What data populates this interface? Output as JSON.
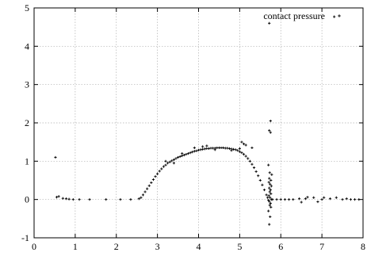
{
  "chart_data": {
    "type": "scatter",
    "title": "",
    "xlabel": "",
    "ylabel": "",
    "xlim": [
      0,
      8
    ],
    "ylim": [
      -1,
      5
    ],
    "x_ticks": [
      "0",
      "1",
      "2",
      "3",
      "4",
      "5",
      "6",
      "7",
      "8"
    ],
    "y_ticks": [
      "-1",
      "0",
      "1",
      "2",
      "3",
      "4",
      "5"
    ],
    "grid": true,
    "legend_position": "top-right",
    "marker": "plus",
    "series": [
      {
        "name": "contact pressure",
        "color": "#000000",
        "points": [
          [
            0.52,
            1.1
          ],
          [
            0.55,
            0.06
          ],
          [
            0.6,
            0.08
          ],
          [
            0.7,
            0.03
          ],
          [
            0.78,
            0.02
          ],
          [
            0.85,
            0.01
          ],
          [
            0.95,
            0.0
          ],
          [
            1.1,
            0.0
          ],
          [
            1.35,
            0.0
          ],
          [
            1.75,
            0.0
          ],
          [
            2.1,
            0.0
          ],
          [
            2.35,
            0.0
          ],
          [
            2.55,
            0.02
          ],
          [
            2.6,
            0.05
          ],
          [
            2.65,
            0.12
          ],
          [
            2.7,
            0.2
          ],
          [
            2.75,
            0.28
          ],
          [
            2.8,
            0.36
          ],
          [
            2.85,
            0.44
          ],
          [
            2.9,
            0.52
          ],
          [
            2.95,
            0.6
          ],
          [
            3.0,
            0.67
          ],
          [
            3.05,
            0.74
          ],
          [
            3.1,
            0.8
          ],
          [
            3.15,
            0.86
          ],
          [
            3.2,
            0.9
          ],
          [
            3.25,
            0.95
          ],
          [
            3.3,
            0.98
          ],
          [
            3.35,
            1.01
          ],
          [
            3.4,
            1.04
          ],
          [
            3.45,
            1.07
          ],
          [
            3.5,
            1.1
          ],
          [
            3.55,
            1.12
          ],
          [
            3.6,
            1.14
          ],
          [
            3.65,
            1.16
          ],
          [
            3.7,
            1.18
          ],
          [
            3.75,
            1.2
          ],
          [
            3.8,
            1.22
          ],
          [
            3.85,
            1.24
          ],
          [
            3.9,
            1.26
          ],
          [
            3.95,
            1.27
          ],
          [
            4.0,
            1.29
          ],
          [
            4.05,
            1.3
          ],
          [
            4.1,
            1.31
          ],
          [
            4.15,
            1.32
          ],
          [
            4.2,
            1.33
          ],
          [
            4.25,
            1.33
          ],
          [
            4.3,
            1.34
          ],
          [
            4.35,
            1.34
          ],
          [
            4.4,
            1.34
          ],
          [
            4.45,
            1.35
          ],
          [
            4.5,
            1.35
          ],
          [
            4.55,
            1.35
          ],
          [
            4.6,
            1.35
          ],
          [
            4.65,
            1.34
          ],
          [
            4.7,
            1.34
          ],
          [
            4.75,
            1.33
          ],
          [
            4.8,
            1.32
          ],
          [
            4.85,
            1.31
          ],
          [
            4.9,
            1.3
          ],
          [
            4.95,
            1.28
          ],
          [
            5.0,
            1.25
          ],
          [
            5.05,
            1.22
          ],
          [
            5.1,
            1.18
          ],
          [
            5.15,
            1.13
          ],
          [
            5.2,
            1.07
          ],
          [
            5.25,
            1.0
          ],
          [
            5.3,
            0.92
          ],
          [
            5.35,
            0.83
          ],
          [
            5.4,
            0.73
          ],
          [
            5.45,
            0.62
          ],
          [
            5.5,
            0.5
          ],
          [
            5.55,
            0.38
          ],
          [
            5.6,
            0.25
          ],
          [
            5.65,
            0.12
          ],
          [
            5.68,
            0.05
          ],
          [
            5.7,
            -0.02
          ],
          [
            4.1,
            1.38
          ],
          [
            4.2,
            1.4
          ],
          [
            5.05,
            1.5
          ],
          [
            5.1,
            1.45
          ],
          [
            5.15,
            1.42
          ],
          [
            5.3,
            1.35
          ],
          [
            3.2,
            1.0
          ],
          [
            3.4,
            0.95
          ],
          [
            3.6,
            1.2
          ],
          [
            3.9,
            1.35
          ],
          [
            4.4,
            1.3
          ],
          [
            4.8,
            1.28
          ],
          [
            5.0,
            1.33
          ],
          [
            5.72,
            4.6
          ],
          [
            5.75,
            2.05
          ],
          [
            5.72,
            1.8
          ],
          [
            5.75,
            1.75
          ],
          [
            5.7,
            0.9
          ],
          [
            5.73,
            0.7
          ],
          [
            5.78,
            0.65
          ],
          [
            5.72,
            0.55
          ],
          [
            5.76,
            0.5
          ],
          [
            5.71,
            0.45
          ],
          [
            5.74,
            0.4
          ],
          [
            5.77,
            0.35
          ],
          [
            5.72,
            0.3
          ],
          [
            5.75,
            0.25
          ],
          [
            5.73,
            0.2
          ],
          [
            5.76,
            0.15
          ],
          [
            5.71,
            0.1
          ],
          [
            5.74,
            0.05
          ],
          [
            5.77,
            0.0
          ],
          [
            5.72,
            -0.05
          ],
          [
            5.75,
            -0.1
          ],
          [
            5.73,
            -0.15
          ],
          [
            5.76,
            -0.2
          ],
          [
            5.7,
            -0.3
          ],
          [
            5.74,
            -0.45
          ],
          [
            5.72,
            -0.65
          ],
          [
            5.8,
            0.0
          ],
          [
            5.9,
            0.0
          ],
          [
            6.0,
            0.0
          ],
          [
            6.1,
            0.0
          ],
          [
            6.2,
            0.0
          ],
          [
            6.3,
            0.0
          ],
          [
            6.45,
            0.02
          ],
          [
            6.5,
            -0.07
          ],
          [
            6.6,
            0.02
          ],
          [
            6.65,
            0.06
          ],
          [
            6.8,
            0.05
          ],
          [
            6.9,
            -0.06
          ],
          [
            7.0,
            0.0
          ],
          [
            7.05,
            0.05
          ],
          [
            7.2,
            0.02
          ],
          [
            7.35,
            0.05
          ],
          [
            7.5,
            0.0
          ],
          [
            7.6,
            0.02
          ],
          [
            7.7,
            0.0
          ],
          [
            7.8,
            0.0
          ],
          [
            7.9,
            0.0
          ],
          [
            7.3,
            4.77
          ]
        ]
      }
    ]
  }
}
